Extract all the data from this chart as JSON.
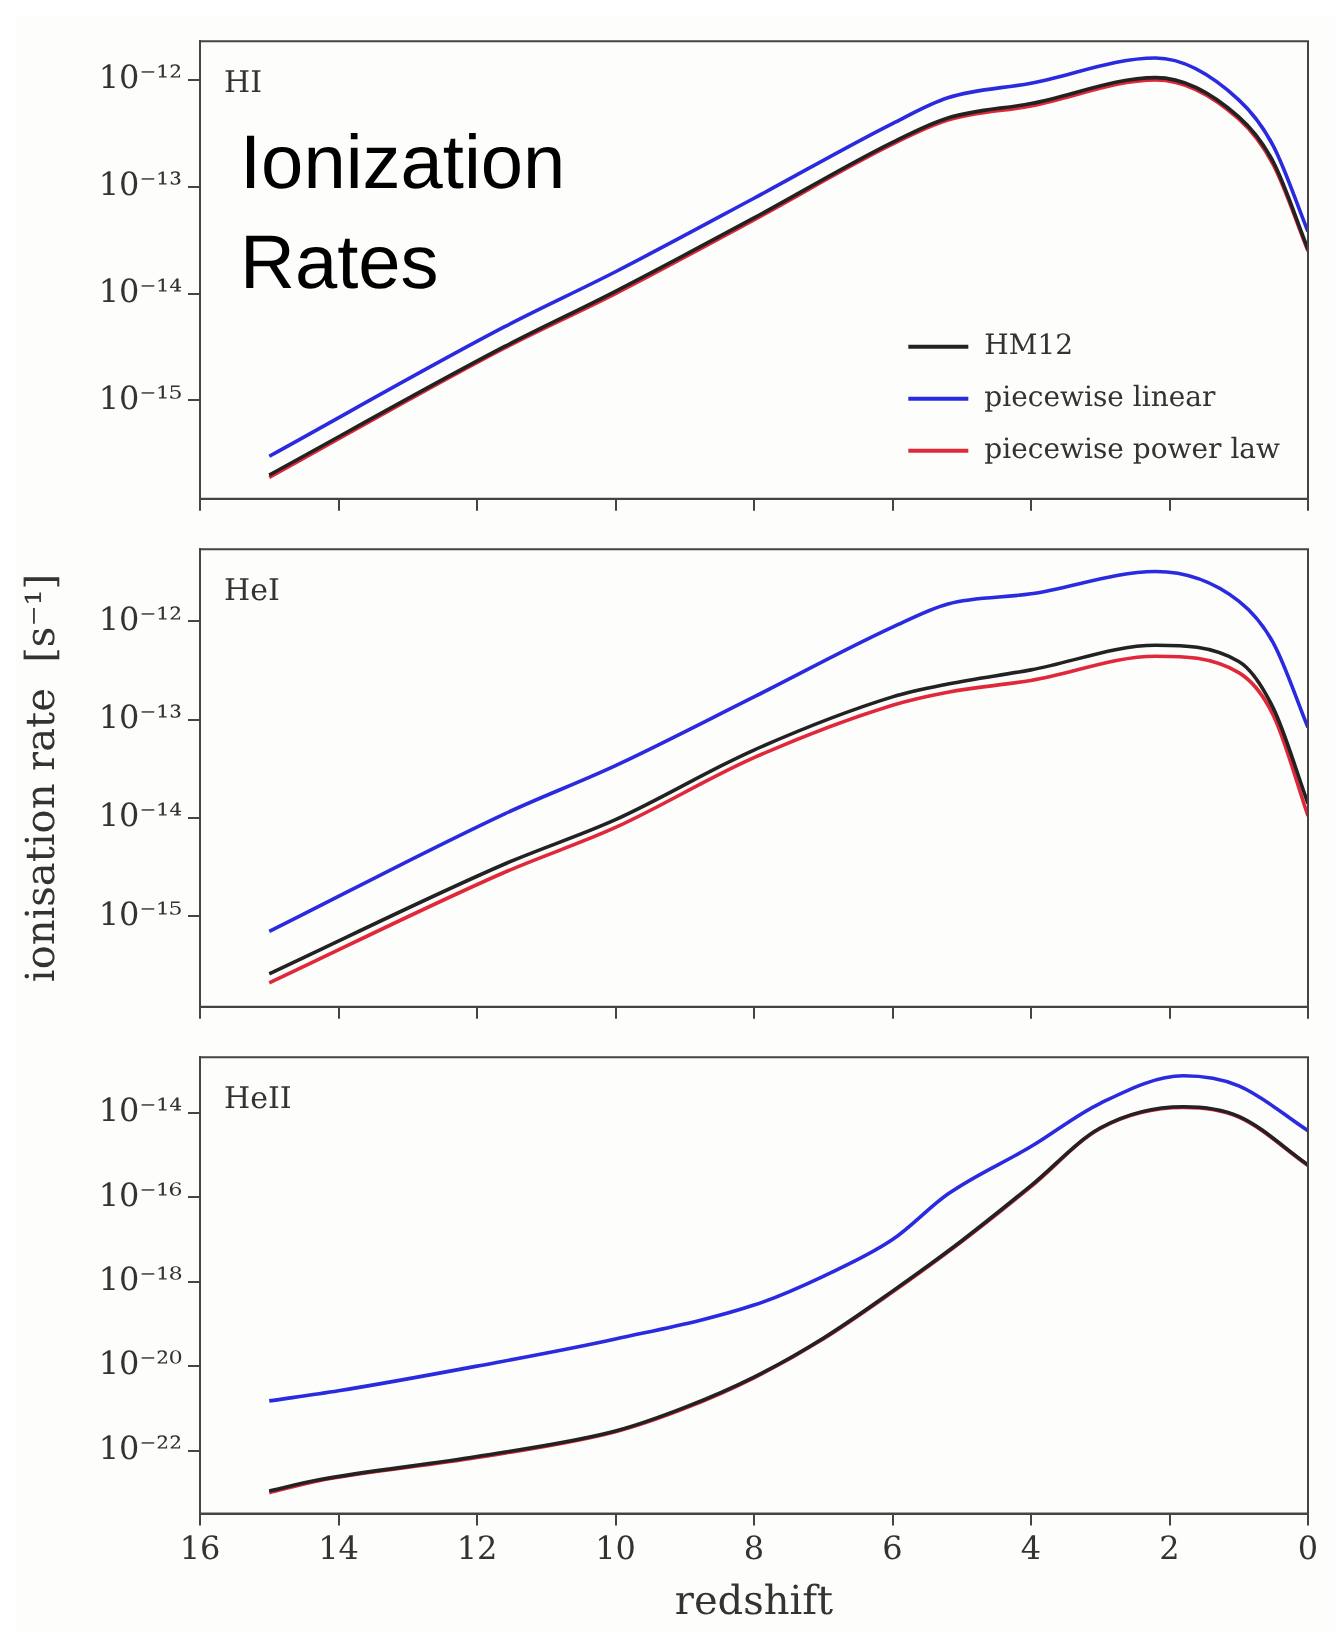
{
  "chart_data": [
    {
      "type": "line",
      "title": "Ionization Rates",
      "annotations": [
        "HI"
      ],
      "marker": "none",
      "log": "y",
      "legend": "bottom right",
      "tick_labels": "y",
      "xlim": [
        16,
        0
      ],
      "xticks": [
        16,
        14,
        12,
        10,
        8,
        6,
        4,
        2,
        0
      ],
      "ylim": [
        1.2e-16,
        2.3e-12
      ],
      "yticks": [
        {
          "value": 1e-15,
          "label": "10⁻¹⁵"
        },
        {
          "value": 1e-14,
          "label": "10⁻¹⁴"
        },
        {
          "value": 1e-13,
          "label": "10⁻¹³"
        },
        {
          "value": 1e-12,
          "label": "10⁻¹²"
        }
      ],
      "series": [
        {
          "name": "HM12",
          "color": "#222222",
          "x": [
            15,
            11.6,
            10,
            8,
            6,
            5.2,
            4,
            2.2,
            1,
            0.5,
            0
          ],
          "values": [
            2e-16,
            3.2e-15,
            1.05e-14,
            5.1e-14,
            2.6e-13,
            4.4e-13,
            6e-13,
            1.05e-12,
            4.5e-13,
            1.7e-13,
            2.6e-14
          ]
        },
        {
          "name": "piecewise linear",
          "color": "#2a2ae0",
          "x": [
            15,
            11.6,
            10,
            8,
            6,
            5.2,
            4,
            2.2,
            1,
            0.5,
            0
          ],
          "values": [
            3e-16,
            4.9e-15,
            1.6e-14,
            7.8e-14,
            3.9e-13,
            6.8e-13,
            9.3e-13,
            1.6e-12,
            6.5e-13,
            2.4e-13,
            3.8e-14
          ]
        },
        {
          "name": "piecewise power law",
          "color": "#e0283a",
          "x": [
            15,
            11.6,
            10,
            8,
            6,
            5.2,
            4,
            2.2,
            1,
            0.5,
            0
          ],
          "values": [
            1.9e-16,
            3.1e-15,
            1e-14,
            4.9e-14,
            2.5e-13,
            4.2e-13,
            5.7e-13,
            1e-12,
            4.3e-13,
            1.6e-13,
            2.5e-14
          ]
        }
      ]
    },
    {
      "type": "line",
      "annotations": [
        "HeI"
      ],
      "ylabel": "ionisation rate  [s⁻¹]",
      "marker": "none",
      "log": "y",
      "tick_labels": "y",
      "xlim": [
        16,
        0
      ],
      "xticks": [
        16,
        14,
        12,
        10,
        8,
        6,
        4,
        2,
        0
      ],
      "ylim": [
        1.2e-16,
        5.4e-12
      ],
      "yticks": [
        {
          "value": 1e-15,
          "label": "10⁻¹⁵"
        },
        {
          "value": 1e-14,
          "label": "10⁻¹⁴"
        },
        {
          "value": 1e-13,
          "label": "10⁻¹³"
        },
        {
          "value": 1e-12,
          "label": "10⁻¹²"
        }
      ],
      "series": [
        {
          "color": "#222222",
          "x": [
            15,
            11.6,
            10,
            8,
            6,
            5.2,
            4,
            2.2,
            1,
            0.5,
            0
          ],
          "values": [
            2.6e-16,
            3.4e-15,
            9.6e-15,
            4.9e-14,
            1.7e-13,
            2.3e-13,
            3.2e-13,
            5.7e-13,
            3.9e-13,
            1.3e-13,
            1.4e-14
          ]
        },
        {
          "color": "#2a2ae0",
          "x": [
            15,
            11.6,
            10,
            8,
            6,
            5.2,
            4,
            2.2,
            1,
            0.5,
            0
          ],
          "values": [
            7e-16,
            1.1e-14,
            3.4e-14,
            1.7e-13,
            8.7e-13,
            1.5e-12,
            1.9e-12,
            3.2e-12,
            1.6e-12,
            6e-13,
            8.3e-14
          ]
        },
        {
          "color": "#e0283a",
          "x": [
            15,
            11.6,
            10,
            8,
            6,
            5.2,
            4,
            2.2,
            1,
            0.5,
            0
          ],
          "values": [
            2.1e-16,
            2.8e-15,
            8e-15,
            4.1e-14,
            1.4e-13,
            1.9e-13,
            2.5e-13,
            4.4e-13,
            3e-13,
            1.1e-13,
            1.05e-14
          ]
        }
      ]
    },
    {
      "type": "line",
      "annotations": [
        "HeII"
      ],
      "xlabel": "redshift",
      "marker": "none",
      "log": "y",
      "xlim": [
        16,
        0
      ],
      "xticks": [
        16,
        14,
        12,
        10,
        8,
        6,
        4,
        2,
        0
      ],
      "ylim": [
        3.2e-24,
        2.1e-13
      ],
      "yticks": [
        {
          "value": 1e-22,
          "label": "10⁻²²"
        },
        {
          "value": 1e-20,
          "label": "10⁻²⁰"
        },
        {
          "value": 1e-18,
          "label": "10⁻¹⁸"
        },
        {
          "value": 1e-16,
          "label": "10⁻¹⁶"
        },
        {
          "value": 1e-14,
          "label": "10⁻¹⁴"
        }
      ],
      "series": [
        {
          "color": "#222222",
          "x": [
            15,
            14.3,
            12,
            10,
            9,
            8,
            7,
            6,
            5,
            4,
            3,
            1.8,
            1,
            0
          ],
          "values": [
            1.1e-23,
            2e-23,
            7.2e-23,
            2.9e-22,
            1.05e-21,
            5.5e-21,
            4.6e-20,
            6e-19,
            9.4e-18,
            1.9e-16,
            4.4e-15,
            1.4e-14,
            8.3e-15,
            5.9e-16
          ]
        },
        {
          "color": "#2a2ae0",
          "x": [
            15,
            14,
            12,
            10,
            8,
            7,
            6,
            5.2,
            4,
            3,
            1.8,
            1,
            0
          ],
          "values": [
            1.5e-21,
            2.6e-21,
            1e-20,
            4.4e-20,
            2.8e-19,
            1.35e-18,
            1e-17,
            1.2e-16,
            1.6e-15,
            1.7e-14,
            7.6e-14,
            4.4e-14,
            3.8e-15
          ]
        },
        {
          "color": "#e0283a",
          "x": [
            15,
            14.3,
            12,
            10,
            9,
            8,
            7,
            6,
            5,
            4,
            3,
            1.8,
            1,
            0
          ],
          "values": [
            1e-23,
            1.9e-23,
            6.8e-23,
            2.8e-22,
            1e-21,
            5.3e-21,
            4.4e-20,
            5.7e-19,
            9e-18,
            1.8e-16,
            4.3e-15,
            1.35e-14,
            8e-15,
            5.7e-16
          ]
        }
      ]
    }
  ]
}
